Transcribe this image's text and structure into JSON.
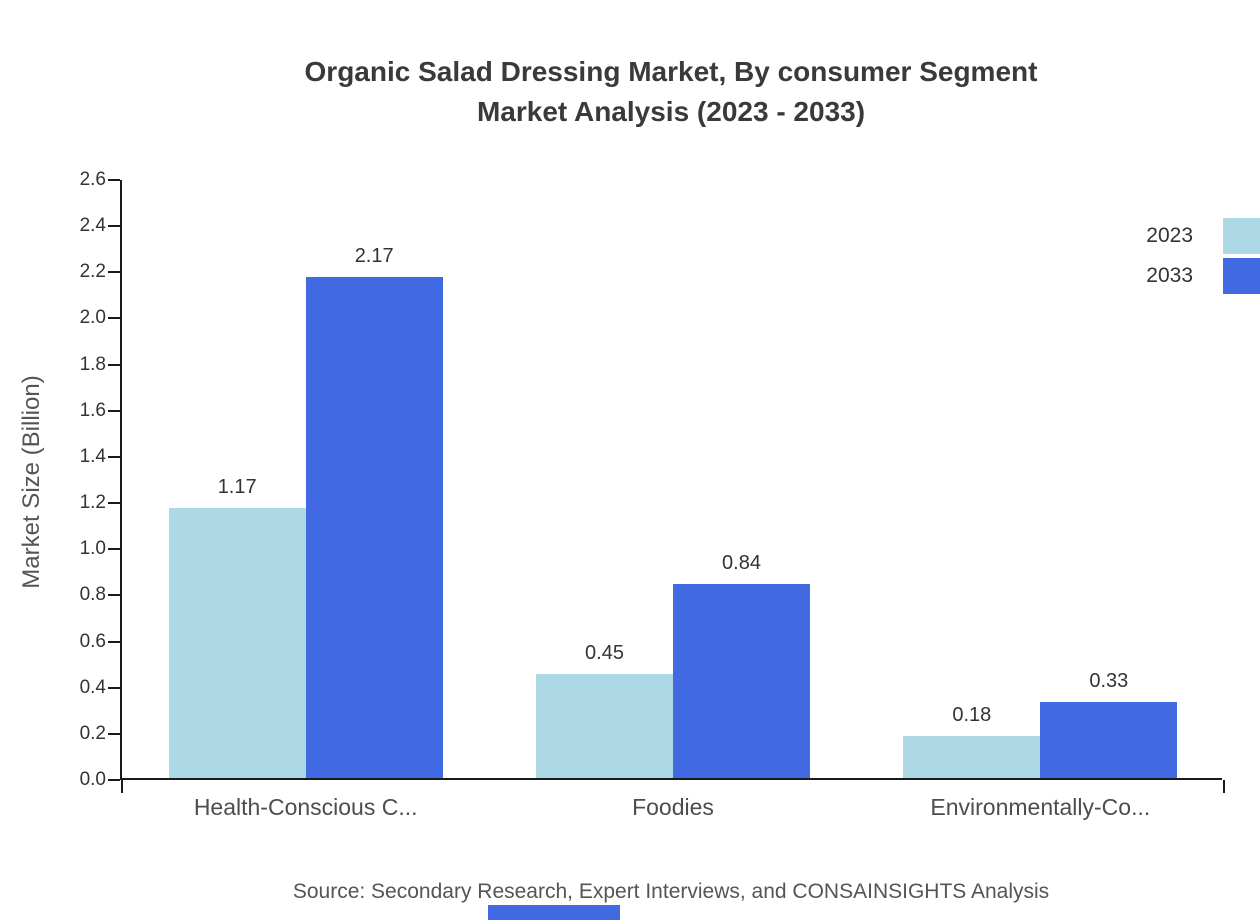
{
  "chart": {
    "title_line1": "Organic Salad Dressing Market, By consumer Segment",
    "title_line2": "Market Analysis (2023 - 2033)",
    "source": "Source: Secondary Research, Expert Interviews, and CONSAINSIGHTS Analysis"
  },
  "chart_data": {
    "type": "bar",
    "title": "Organic Salad Dressing Market, By consumer Segment Market Analysis (2023 - 2033)",
    "categories": [
      "Health-Conscious C...",
      "Foodies",
      "Environmentally-Co..."
    ],
    "series": [
      {
        "name": "2023",
        "color": "#ADD8E6",
        "values": [
          1.17,
          0.45,
          0.18
        ]
      },
      {
        "name": "2033",
        "color": "#4169E1",
        "values": [
          2.17,
          0.84,
          0.33
        ]
      }
    ],
    "xlabel": "",
    "ylabel": "Market Size (Billion)",
    "ylim": [
      0,
      2.6
    ],
    "ytick_step": 0.2,
    "grid": false,
    "legend_position": "top-right",
    "value_labels": true,
    "accent_color": "#4169E1"
  }
}
